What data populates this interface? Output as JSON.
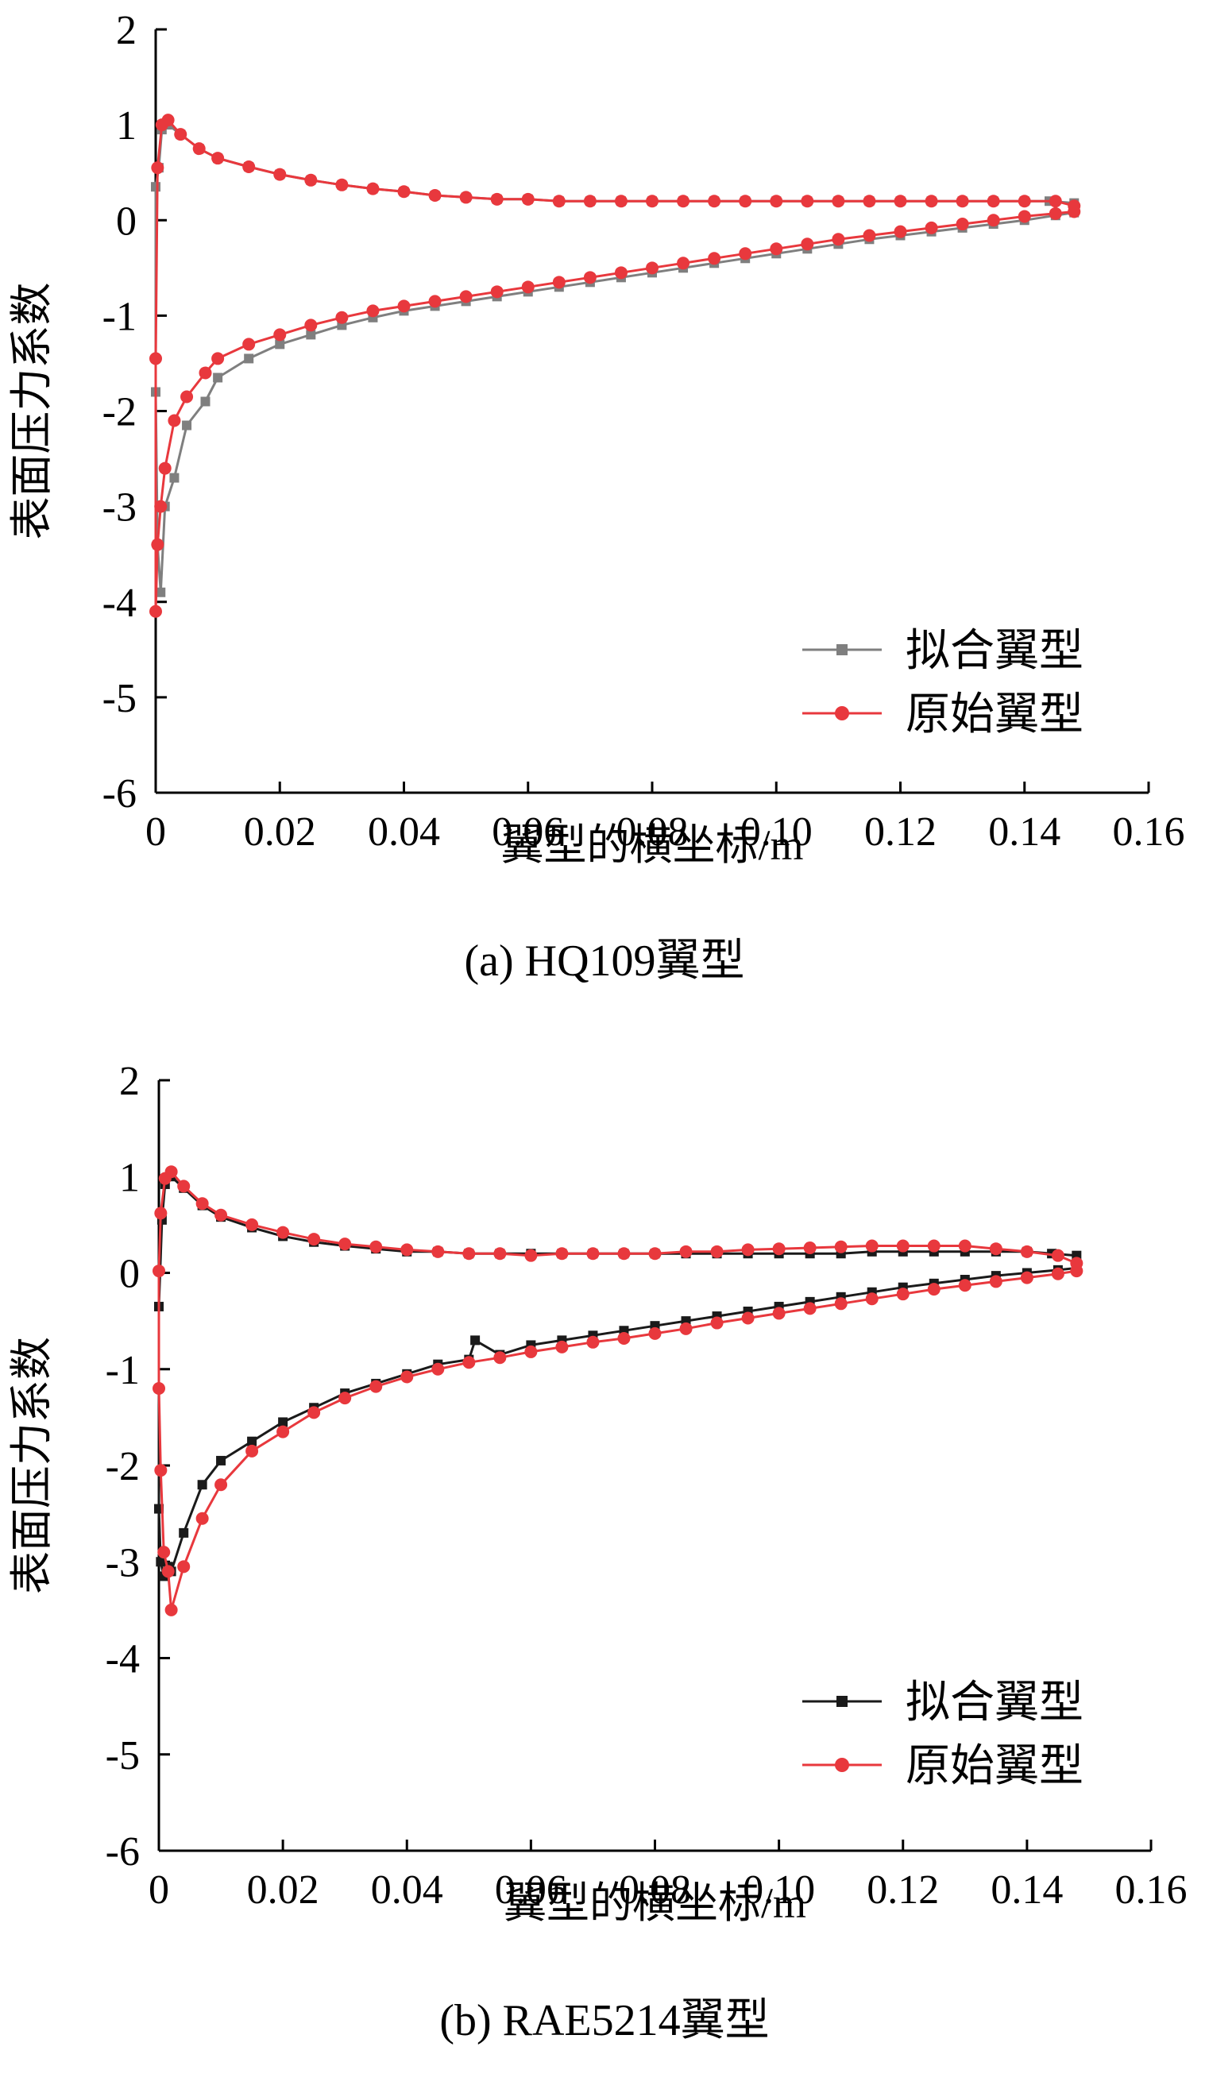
{
  "chart_data": [
    {
      "type": "line",
      "caption": "(a)  HQ109翼型",
      "xlabel": "翼型的横坐标/m",
      "ylabel": "表面压力系数",
      "xlim": [
        0,
        0.16
      ],
      "ylim": [
        -6,
        2
      ],
      "x_ticks": [
        "0",
        "0.02",
        "0.04",
        "0.06",
        "0.08",
        "0.10",
        "0.12",
        "0.14",
        "0.16"
      ],
      "y_ticks": [
        "2",
        "1",
        "0",
        "-1",
        "-2",
        "-3",
        "-4",
        "-5",
        "-6"
      ],
      "legend_position": "bottom-right",
      "grid": false,
      "series": [
        {
          "name": "拟合翼型",
          "color": "#7f7f7f",
          "marker": "square",
          "x": [
            0.148,
            0.144,
            0.14,
            0.135,
            0.13,
            0.125,
            0.12,
            0.115,
            0.11,
            0.105,
            0.1,
            0.095,
            0.09,
            0.085,
            0.08,
            0.075,
            0.07,
            0.065,
            0.06,
            0.055,
            0.05,
            0.045,
            0.04,
            0.035,
            0.03,
            0.025,
            0.02,
            0.015,
            0.01,
            0.007,
            0.004,
            0.002,
            0.001,
            0.0005,
            0.0,
            0.0,
            0.0003,
            0.0008,
            0.0015,
            0.003,
            0.005,
            0.008,
            0.01,
            0.015,
            0.02,
            0.025,
            0.03,
            0.035,
            0.04,
            0.045,
            0.05,
            0.055,
            0.06,
            0.065,
            0.07,
            0.075,
            0.08,
            0.085,
            0.09,
            0.095,
            0.1,
            0.105,
            0.11,
            0.115,
            0.12,
            0.125,
            0.13,
            0.135,
            0.14,
            0.145,
            0.148
          ],
          "y": [
            0.18,
            0.2,
            0.2,
            0.2,
            0.2,
            0.2,
            0.2,
            0.2,
            0.2,
            0.2,
            0.2,
            0.2,
            0.2,
            0.2,
            0.2,
            0.2,
            0.2,
            0.2,
            0.22,
            0.22,
            0.24,
            0.26,
            0.3,
            0.33,
            0.37,
            0.42,
            0.48,
            0.56,
            0.65,
            0.75,
            0.9,
            1.0,
            0.95,
            0.55,
            0.35,
            -1.8,
            -3.4,
            -3.9,
            -3.0,
            -2.7,
            -2.15,
            -1.9,
            -1.65,
            -1.45,
            -1.3,
            -1.2,
            -1.1,
            -1.02,
            -0.95,
            -0.9,
            -0.85,
            -0.8,
            -0.75,
            -0.7,
            -0.65,
            -0.6,
            -0.55,
            -0.5,
            -0.45,
            -0.4,
            -0.35,
            -0.3,
            -0.25,
            -0.2,
            -0.16,
            -0.12,
            -0.08,
            -0.04,
            0.0,
            0.05,
            0.08
          ]
        },
        {
          "name": "原始翼型",
          "color": "#e8383d",
          "marker": "circle",
          "x": [
            0.148,
            0.145,
            0.14,
            0.135,
            0.13,
            0.125,
            0.12,
            0.115,
            0.11,
            0.105,
            0.1,
            0.095,
            0.09,
            0.085,
            0.08,
            0.075,
            0.07,
            0.065,
            0.06,
            0.055,
            0.05,
            0.045,
            0.04,
            0.035,
            0.03,
            0.025,
            0.02,
            0.015,
            0.01,
            0.007,
            0.004,
            0.002,
            0.001,
            0.0003,
            0.0,
            0.0,
            0.0003,
            0.0008,
            0.0015,
            0.003,
            0.005,
            0.008,
            0.01,
            0.015,
            0.02,
            0.025,
            0.03,
            0.035,
            0.04,
            0.045,
            0.05,
            0.055,
            0.06,
            0.065,
            0.07,
            0.075,
            0.08,
            0.085,
            0.09,
            0.095,
            0.1,
            0.105,
            0.11,
            0.115,
            0.12,
            0.125,
            0.13,
            0.135,
            0.14,
            0.145,
            0.148
          ],
          "y": [
            0.15,
            0.2,
            0.2,
            0.2,
            0.2,
            0.2,
            0.2,
            0.2,
            0.2,
            0.2,
            0.2,
            0.2,
            0.2,
            0.2,
            0.2,
            0.2,
            0.2,
            0.2,
            0.22,
            0.22,
            0.24,
            0.26,
            0.3,
            0.33,
            0.37,
            0.42,
            0.48,
            0.56,
            0.65,
            0.75,
            0.9,
            1.05,
            1.0,
            0.55,
            -1.45,
            -4.1,
            -3.4,
            -3.0,
            -2.6,
            -2.1,
            -1.85,
            -1.6,
            -1.45,
            -1.3,
            -1.2,
            -1.1,
            -1.02,
            -0.95,
            -0.9,
            -0.85,
            -0.8,
            -0.75,
            -0.7,
            -0.65,
            -0.6,
            -0.55,
            -0.5,
            -0.45,
            -0.4,
            -0.35,
            -0.3,
            -0.25,
            -0.2,
            -0.16,
            -0.12,
            -0.08,
            -0.04,
            0.0,
            0.04,
            0.07,
            0.09
          ]
        }
      ]
    },
    {
      "type": "line",
      "caption": "(b)  RAE5214翼型",
      "xlabel": "翼型的横坐标/m",
      "ylabel": "表面压力系数",
      "xlim": [
        0,
        0.16
      ],
      "ylim": [
        -6,
        2
      ],
      "x_ticks": [
        "0",
        "0.02",
        "0.04",
        "0.06",
        "0.08",
        "0.10",
        "0.12",
        "0.14",
        "0.16"
      ],
      "y_ticks": [
        "2",
        "1",
        "0",
        "-1",
        "-2",
        "-3",
        "-4",
        "-5",
        "-6"
      ],
      "legend_position": "bottom-right",
      "grid": false,
      "series": [
        {
          "name": "拟合翼型",
          "color": "#1a1a1a",
          "marker": "square",
          "x": [
            0.148,
            0.144,
            0.14,
            0.135,
            0.13,
            0.125,
            0.12,
            0.115,
            0.11,
            0.105,
            0.1,
            0.095,
            0.09,
            0.085,
            0.08,
            0.075,
            0.07,
            0.065,
            0.06,
            0.055,
            0.05,
            0.045,
            0.04,
            0.035,
            0.03,
            0.025,
            0.02,
            0.015,
            0.01,
            0.007,
            0.004,
            0.002,
            0.001,
            0.0005,
            0.0,
            0.0,
            0.0003,
            0.0008,
            0.0015,
            0.002,
            0.004,
            0.007,
            0.01,
            0.015,
            0.02,
            0.025,
            0.03,
            0.035,
            0.04,
            0.045,
            0.05,
            0.051,
            0.055,
            0.06,
            0.065,
            0.07,
            0.075,
            0.08,
            0.085,
            0.09,
            0.095,
            0.1,
            0.105,
            0.11,
            0.115,
            0.12,
            0.125,
            0.13,
            0.135,
            0.14,
            0.145,
            0.148
          ],
          "y": [
            0.18,
            0.2,
            0.22,
            0.22,
            0.22,
            0.22,
            0.22,
            0.22,
            0.2,
            0.2,
            0.2,
            0.2,
            0.2,
            0.2,
            0.2,
            0.2,
            0.2,
            0.2,
            0.2,
            0.2,
            0.2,
            0.22,
            0.22,
            0.25,
            0.28,
            0.32,
            0.38,
            0.47,
            0.58,
            0.7,
            0.88,
            1.0,
            0.92,
            0.55,
            -0.35,
            -2.45,
            -3.0,
            -3.15,
            -3.05,
            -3.1,
            -2.7,
            -2.2,
            -1.95,
            -1.75,
            -1.55,
            -1.4,
            -1.25,
            -1.15,
            -1.05,
            -0.95,
            -0.9,
            -0.7,
            -0.85,
            -0.75,
            -0.7,
            -0.65,
            -0.6,
            -0.55,
            -0.5,
            -0.45,
            -0.4,
            -0.35,
            -0.3,
            -0.25,
            -0.2,
            -0.15,
            -0.11,
            -0.07,
            -0.03,
            0.0,
            0.03,
            0.05
          ]
        },
        {
          "name": "原始翼型",
          "color": "#e8383d",
          "marker": "circle",
          "x": [
            0.148,
            0.145,
            0.14,
            0.135,
            0.13,
            0.125,
            0.12,
            0.115,
            0.11,
            0.105,
            0.1,
            0.095,
            0.09,
            0.085,
            0.08,
            0.075,
            0.07,
            0.065,
            0.06,
            0.055,
            0.05,
            0.045,
            0.04,
            0.035,
            0.03,
            0.025,
            0.02,
            0.015,
            0.01,
            0.007,
            0.004,
            0.002,
            0.001,
            0.0003,
            0.0,
            0.0,
            0.0003,
            0.0008,
            0.0015,
            0.002,
            0.004,
            0.007,
            0.01,
            0.015,
            0.02,
            0.025,
            0.03,
            0.035,
            0.04,
            0.045,
            0.05,
            0.055,
            0.06,
            0.065,
            0.07,
            0.075,
            0.08,
            0.085,
            0.09,
            0.095,
            0.1,
            0.105,
            0.11,
            0.115,
            0.12,
            0.125,
            0.13,
            0.135,
            0.14,
            0.145,
            0.148
          ],
          "y": [
            0.1,
            0.18,
            0.22,
            0.25,
            0.28,
            0.28,
            0.28,
            0.28,
            0.27,
            0.26,
            0.25,
            0.24,
            0.22,
            0.22,
            0.2,
            0.2,
            0.2,
            0.2,
            0.18,
            0.2,
            0.2,
            0.22,
            0.24,
            0.27,
            0.3,
            0.35,
            0.42,
            0.5,
            0.6,
            0.72,
            0.9,
            1.05,
            0.98,
            0.62,
            0.02,
            -1.2,
            -2.05,
            -2.9,
            -3.1,
            -3.5,
            -3.05,
            -2.55,
            -2.2,
            -1.85,
            -1.65,
            -1.45,
            -1.3,
            -1.18,
            -1.08,
            -1.0,
            -0.93,
            -0.88,
            -0.82,
            -0.77,
            -0.72,
            -0.68,
            -0.63,
            -0.58,
            -0.52,
            -0.47,
            -0.42,
            -0.37,
            -0.32,
            -0.27,
            -0.22,
            -0.17,
            -0.13,
            -0.09,
            -0.05,
            -0.01,
            0.02
          ]
        }
      ]
    }
  ]
}
